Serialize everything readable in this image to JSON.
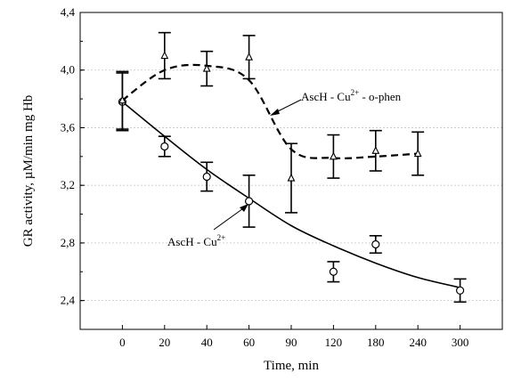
{
  "chart_data": {
    "type": "scatter",
    "xlabel": "Time, min",
    "ylabel": "GR activity,  µM/min mg Hb",
    "categories": [
      "0",
      "20",
      "40",
      "60",
      "90",
      "120",
      "180",
      "240",
      "300"
    ],
    "yticks": [
      "2,4",
      "2,8",
      "3,2",
      "3,6",
      "4,0",
      "4,4"
    ],
    "ylim": [
      2.2,
      4.4
    ],
    "grid": true,
    "series": [
      {
        "name": "AscH - Cu 2+",
        "marker": "circle",
        "line_style": "solid",
        "x": [
          "0",
          "20",
          "40",
          "60",
          "120",
          "180",
          "300"
        ],
        "values": [
          3.78,
          3.47,
          3.26,
          3.09,
          2.6,
          2.79,
          2.47
        ],
        "err": [
          0.2,
          0.07,
          0.1,
          0.18,
          0.07,
          0.06,
          0.08
        ],
        "fit": [
          3.78,
          3.54,
          3.31,
          3.11,
          2.92,
          2.78,
          2.66,
          2.56,
          2.49
        ]
      },
      {
        "name": "AscH - Cu 2+ - o-phen",
        "marker": "triangle",
        "line_style": "dashed",
        "x": [
          "0",
          "20",
          "40",
          "60",
          "90",
          "120",
          "180",
          "240"
        ],
        "values": [
          3.79,
          4.1,
          4.01,
          4.09,
          3.25,
          3.4,
          3.44,
          3.42
        ],
        "err": [
          0.2,
          0.16,
          0.12,
          0.15,
          0.24,
          0.15,
          0.14,
          0.15
        ],
        "fit": [
          3.79,
          4.0,
          4.03,
          3.93,
          3.45,
          3.39,
          3.4,
          3.42
        ]
      }
    ],
    "annotations": [
      {
        "base": "AscH - Cu",
        "sup": "2+",
        "rest": " - o-phen"
      },
      {
        "base": "AscH - Cu",
        "sup": "2+",
        "rest": ""
      }
    ]
  }
}
